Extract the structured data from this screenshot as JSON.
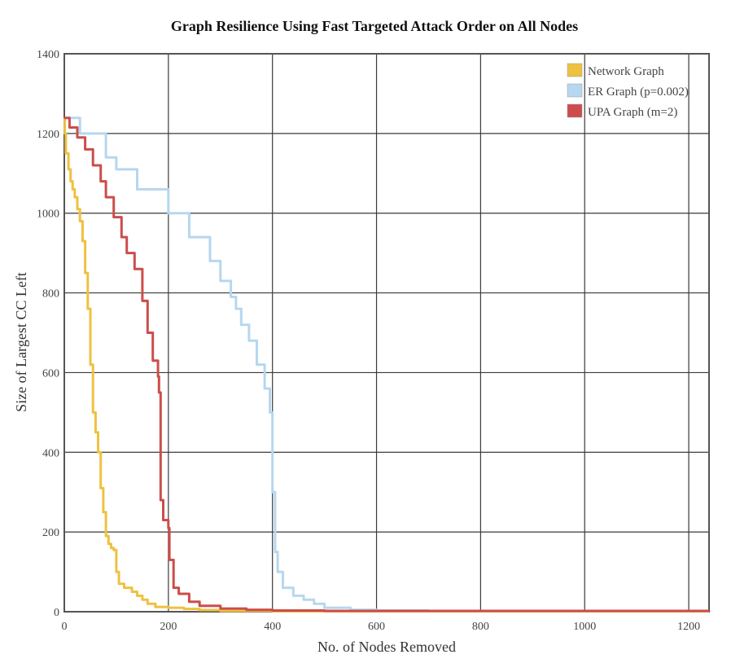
{
  "chart_data": {
    "type": "line",
    "title": "Graph Resilience Using Fast Targeted Attack Order on All Nodes",
    "xlabel": "No. of Nodes Removed",
    "ylabel": "Size of Largest CC Left",
    "xlim": [
      0,
      1239
    ],
    "ylim": [
      0,
      1400
    ],
    "xticks": [
      0,
      200,
      400,
      600,
      800,
      1000,
      1200
    ],
    "yticks": [
      0,
      200,
      400,
      600,
      800,
      1000,
      1200,
      1400
    ],
    "grid": true,
    "legend_position": "top-right",
    "series": [
      {
        "name": "Network Graph",
        "color": "#eec140",
        "points": [
          [
            0,
            1239
          ],
          [
            1,
            1200
          ],
          [
            3,
            1150
          ],
          [
            8,
            1110
          ],
          [
            12,
            1080
          ],
          [
            16,
            1060
          ],
          [
            20,
            1040
          ],
          [
            25,
            1010
          ],
          [
            30,
            980
          ],
          [
            35,
            930
          ],
          [
            40,
            850
          ],
          [
            45,
            760
          ],
          [
            50,
            620
          ],
          [
            55,
            500
          ],
          [
            60,
            450
          ],
          [
            65,
            400
          ],
          [
            70,
            310
          ],
          [
            75,
            250
          ],
          [
            80,
            190
          ],
          [
            85,
            170
          ],
          [
            90,
            160
          ],
          [
            95,
            155
          ],
          [
            100,
            100
          ],
          [
            105,
            70
          ],
          [
            115,
            60
          ],
          [
            130,
            50
          ],
          [
            140,
            40
          ],
          [
            150,
            30
          ],
          [
            160,
            20
          ],
          [
            175,
            12
          ],
          [
            200,
            10
          ],
          [
            230,
            7
          ],
          [
            260,
            4
          ],
          [
            300,
            2
          ],
          [
            400,
            1
          ],
          [
            1239,
            1
          ]
        ]
      },
      {
        "name": "ER Graph (p=0.002)",
        "color": "#b6d7ef",
        "points": [
          [
            0,
            1239
          ],
          [
            30,
            1200
          ],
          [
            80,
            1140
          ],
          [
            100,
            1110
          ],
          [
            140,
            1060
          ],
          [
            200,
            1000
          ],
          [
            240,
            940
          ],
          [
            280,
            880
          ],
          [
            300,
            830
          ],
          [
            320,
            790
          ],
          [
            330,
            760
          ],
          [
            340,
            720
          ],
          [
            355,
            680
          ],
          [
            370,
            620
          ],
          [
            385,
            560
          ],
          [
            395,
            500
          ],
          [
            400,
            300
          ],
          [
            405,
            150
          ],
          [
            410,
            100
          ],
          [
            420,
            60
          ],
          [
            440,
            40
          ],
          [
            460,
            30
          ],
          [
            480,
            20
          ],
          [
            500,
            10
          ],
          [
            550,
            5
          ],
          [
            600,
            3
          ],
          [
            700,
            1
          ],
          [
            1239,
            1
          ]
        ]
      },
      {
        "name": "UPA Graph (m=2)",
        "color": "#cc4d4b",
        "points": [
          [
            0,
            1239
          ],
          [
            10,
            1215
          ],
          [
            25,
            1190
          ],
          [
            40,
            1160
          ],
          [
            55,
            1120
          ],
          [
            70,
            1080
          ],
          [
            80,
            1040
          ],
          [
            95,
            990
          ],
          [
            110,
            940
          ],
          [
            120,
            900
          ],
          [
            135,
            860
          ],
          [
            150,
            780
          ],
          [
            160,
            700
          ],
          [
            170,
            630
          ],
          [
            180,
            590
          ],
          [
            182,
            550
          ],
          [
            185,
            280
          ],
          [
            190,
            230
          ],
          [
            200,
            210
          ],
          [
            202,
            130
          ],
          [
            210,
            60
          ],
          [
            220,
            45
          ],
          [
            240,
            25
          ],
          [
            260,
            15
          ],
          [
            300,
            8
          ],
          [
            350,
            5
          ],
          [
            400,
            3
          ],
          [
            500,
            2
          ],
          [
            1239,
            1
          ]
        ]
      }
    ]
  }
}
